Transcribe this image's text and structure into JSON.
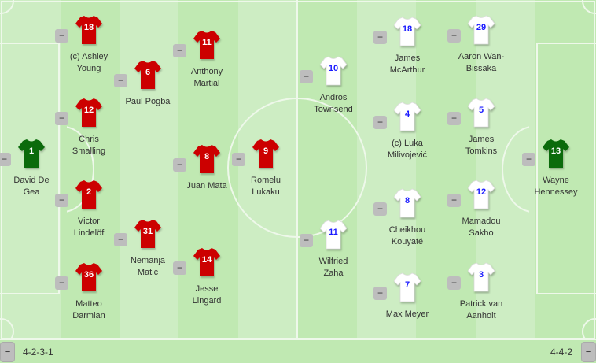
{
  "colors": {
    "home_kit": "#cc0000",
    "home_gk_kit": "#0b6b0b",
    "away_kit": "#ffffff",
    "away_number": "#1a1aff",
    "home_number": "#ffffff"
  },
  "minus_label": "−",
  "home": {
    "formation": "4-2-3-1",
    "players": [
      {
        "number": "1",
        "name": [
          "David De",
          "Gea"
        ],
        "kit": "gk"
      },
      {
        "number": "18",
        "name": [
          "(c) Ashley",
          "Young"
        ]
      },
      {
        "number": "12",
        "name": [
          "Chris",
          "Smalling"
        ]
      },
      {
        "number": "2",
        "name": [
          "Victor",
          "Lindelöf"
        ]
      },
      {
        "number": "36",
        "name": [
          "Matteo",
          "Darmian"
        ]
      },
      {
        "number": "6",
        "name": [
          "Paul Pogba"
        ]
      },
      {
        "number": "31",
        "name": [
          "Nemanja",
          "Matić"
        ]
      },
      {
        "number": "11",
        "name": [
          "Anthony",
          "Martial"
        ]
      },
      {
        "number": "8",
        "name": [
          "Juan Mata"
        ]
      },
      {
        "number": "14",
        "name": [
          "Jesse",
          "Lingard"
        ]
      },
      {
        "number": "9",
        "name": [
          "Romelu",
          "Lukaku"
        ]
      }
    ]
  },
  "away": {
    "formation": "4-4-2",
    "players": [
      {
        "number": "10",
        "name": [
          "Andros",
          "Townsend"
        ]
      },
      {
        "number": "11",
        "name": [
          "Wilfried",
          "Zaha"
        ]
      },
      {
        "number": "18",
        "name": [
          "James",
          "McArthur"
        ]
      },
      {
        "number": "4",
        "name": [
          "(c) Luka",
          "Milivojević"
        ]
      },
      {
        "number": "8",
        "name": [
          "Cheikhou",
          "Kouyaté"
        ]
      },
      {
        "number": "7",
        "name": [
          "Max Meyer"
        ]
      },
      {
        "number": "29",
        "name": [
          "Aaron Wan-",
          "Bissaka"
        ]
      },
      {
        "number": "5",
        "name": [
          "James",
          "Tomkins"
        ]
      },
      {
        "number": "12",
        "name": [
          "Mamadou",
          "Sakho"
        ]
      },
      {
        "number": "3",
        "name": [
          "Patrick van",
          "Aanholt"
        ]
      },
      {
        "number": "13",
        "name": [
          "Wayne",
          "Hennessey"
        ],
        "kit": "gk"
      }
    ]
  }
}
